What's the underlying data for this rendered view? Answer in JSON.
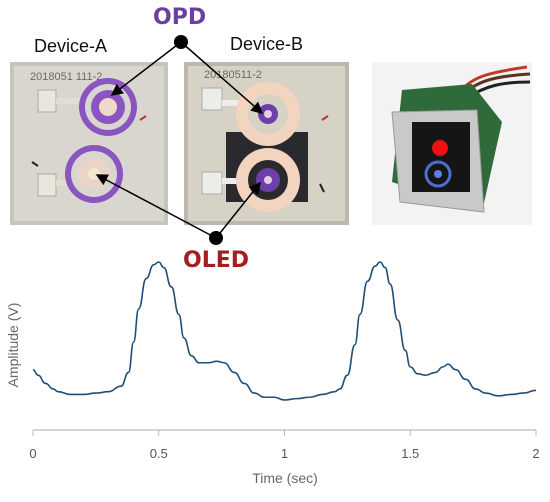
{
  "labels": {
    "device_a": "Device-A",
    "device_b": "Device-B",
    "opd": "OPD",
    "oled": "OLED"
  },
  "photos": {
    "device_a_stamp": "2018051 111-2",
    "device_b_stamp": "20180511-2"
  },
  "colors": {
    "opd": "#6a3fa0",
    "oled": "#a31f1f",
    "trace": "#1f4e79",
    "ring_purple": "#7b4bb0",
    "ring_peach": "#f3d6c4"
  },
  "chart_data": {
    "type": "line",
    "xlabel": "Time (sec)",
    "ylabel": "Amplitude (V)",
    "xlim": [
      0,
      2
    ],
    "xticks": [
      "0",
      "0.5",
      "1",
      "1.5",
      "2"
    ],
    "grid": false,
    "series": [
      {
        "x": [
          0.0,
          0.02,
          0.05,
          0.08,
          0.1,
          0.15,
          0.2,
          0.25,
          0.3,
          0.35,
          0.38,
          0.4,
          0.42,
          0.45,
          0.48,
          0.5,
          0.52,
          0.55,
          0.58,
          0.6,
          0.63,
          0.66,
          0.7,
          0.73,
          0.76,
          0.8,
          0.84,
          0.88,
          0.92,
          0.96,
          1.0,
          1.05,
          1.1,
          1.15,
          1.2,
          1.22,
          1.25,
          1.28,
          1.3,
          1.33,
          1.36,
          1.38,
          1.4,
          1.42,
          1.45,
          1.48,
          1.5,
          1.53,
          1.56,
          1.6,
          1.63,
          1.65,
          1.68,
          1.72,
          1.76,
          1.8,
          1.85,
          1.9,
          1.95,
          2.0
        ],
        "y": [
          0.22,
          0.18,
          0.12,
          0.08,
          0.06,
          0.04,
          0.04,
          0.05,
          0.06,
          0.1,
          0.2,
          0.42,
          0.66,
          0.88,
          0.98,
          1.0,
          0.96,
          0.82,
          0.62,
          0.45,
          0.32,
          0.27,
          0.27,
          0.28,
          0.27,
          0.2,
          0.12,
          0.05,
          0.02,
          0.02,
          0.0,
          0.01,
          0.02,
          0.04,
          0.06,
          0.08,
          0.18,
          0.4,
          0.62,
          0.86,
          0.97,
          1.0,
          0.96,
          0.84,
          0.58,
          0.36,
          0.24,
          0.19,
          0.18,
          0.2,
          0.24,
          0.26,
          0.22,
          0.15,
          0.08,
          0.05,
          0.03,
          0.04,
          0.05,
          0.07
        ]
      }
    ]
  }
}
